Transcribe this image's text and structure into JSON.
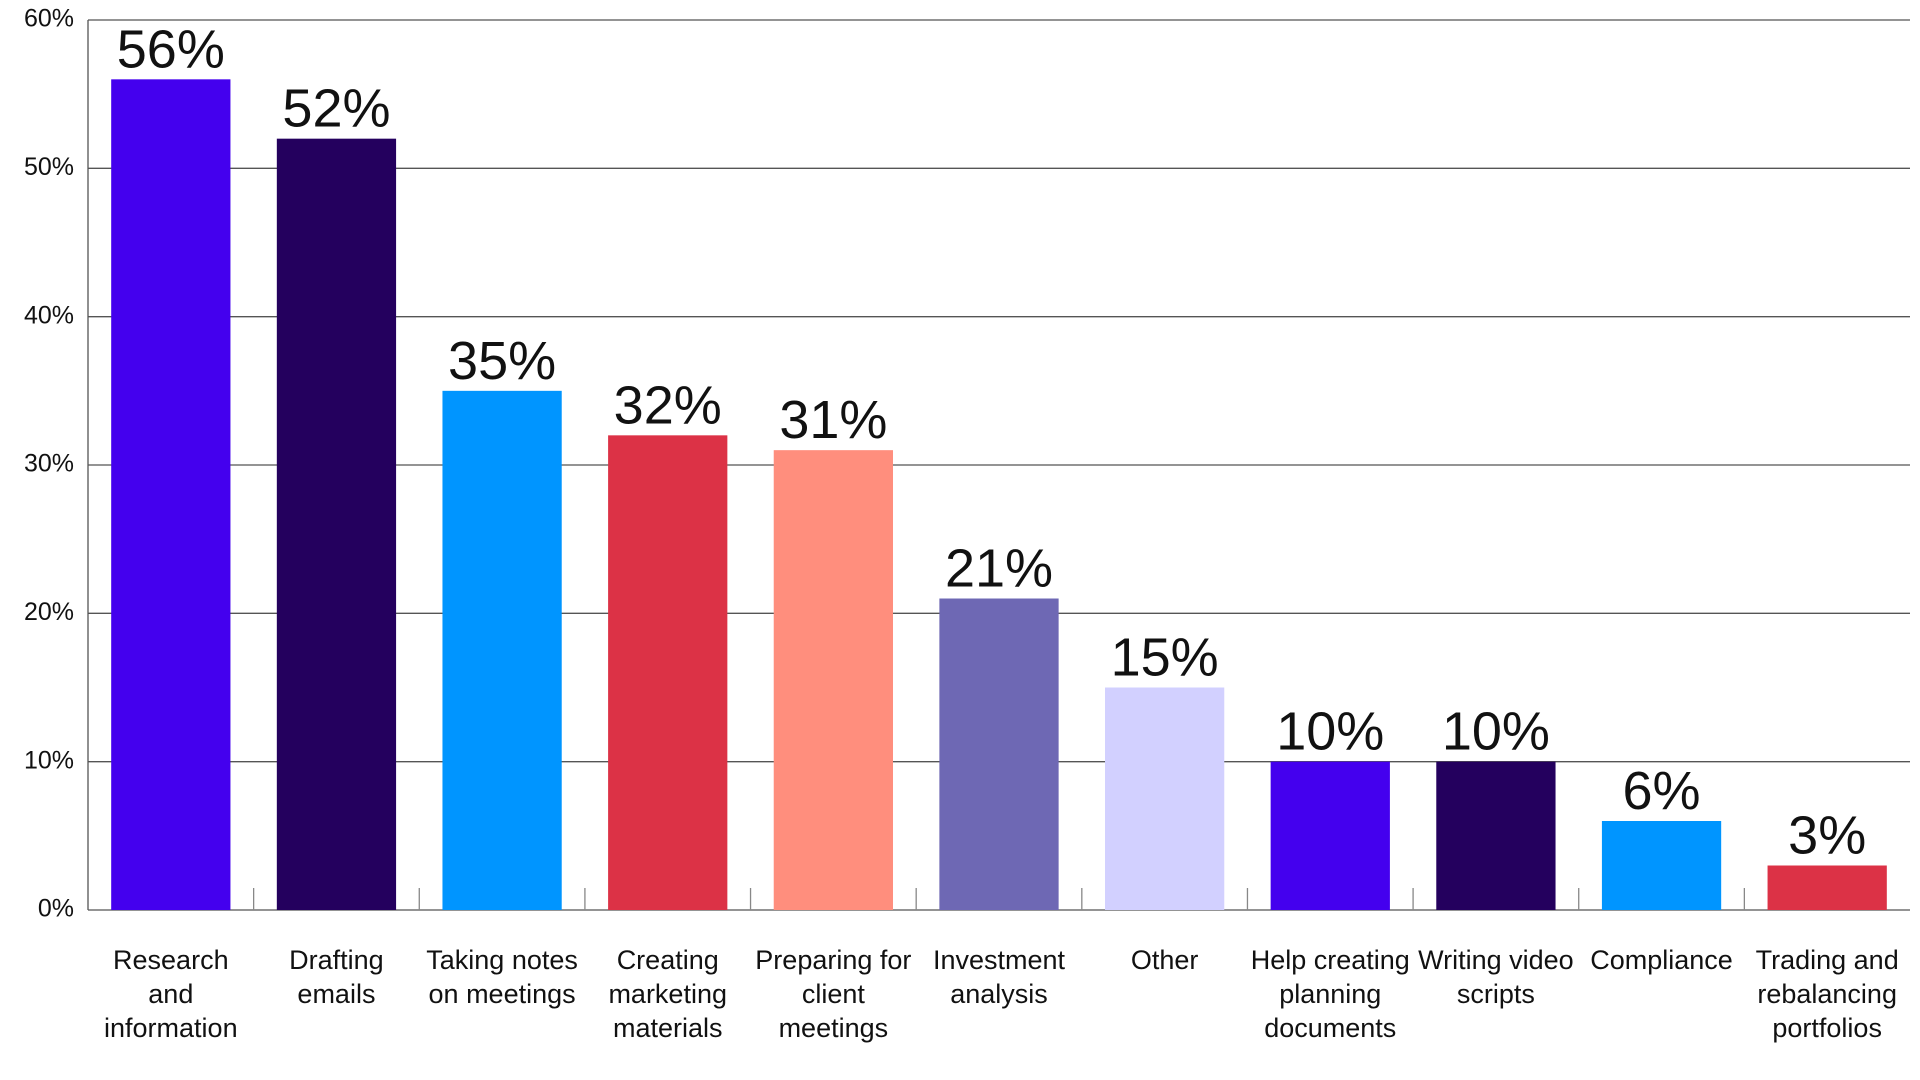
{
  "chart_data": {
    "type": "bar",
    "categories": [
      "Research and information",
      "Drafting emails",
      "Taking notes on meetings",
      "Creating marketing materials",
      "Preparing for client meetings",
      "Investment analysis",
      "Other",
      "Help creating planning documents",
      "Writing video scripts",
      "Compliance",
      "Trading and rebalancing portfolios"
    ],
    "values": [
      56,
      52,
      35,
      32,
      31,
      21,
      15,
      10,
      10,
      6,
      3
    ],
    "value_labels": [
      "56%",
      "52%",
      "35%",
      "32%",
      "31%",
      "21%",
      "15%",
      "10%",
      "10%",
      "6%",
      "3%"
    ],
    "colors": [
      "#4400ee",
      "#24005e",
      "#0095ff",
      "#dc3246",
      "#ff8e7d",
      "#6e68b4",
      "#d2d0ff",
      "#4400ee",
      "#24005e",
      "#0095ff",
      "#dc3246"
    ],
    "ylim": [
      0,
      60
    ],
    "yticks": [
      {
        "value": 0,
        "label": "0%"
      },
      {
        "value": 10,
        "label": "10%"
      },
      {
        "value": 20,
        "label": "20%"
      },
      {
        "value": 30,
        "label": "30%"
      },
      {
        "value": 40,
        "label": "40%"
      },
      {
        "value": 50,
        "label": "50%"
      },
      {
        "value": 60,
        "label": "60%"
      }
    ],
    "grid": true
  }
}
